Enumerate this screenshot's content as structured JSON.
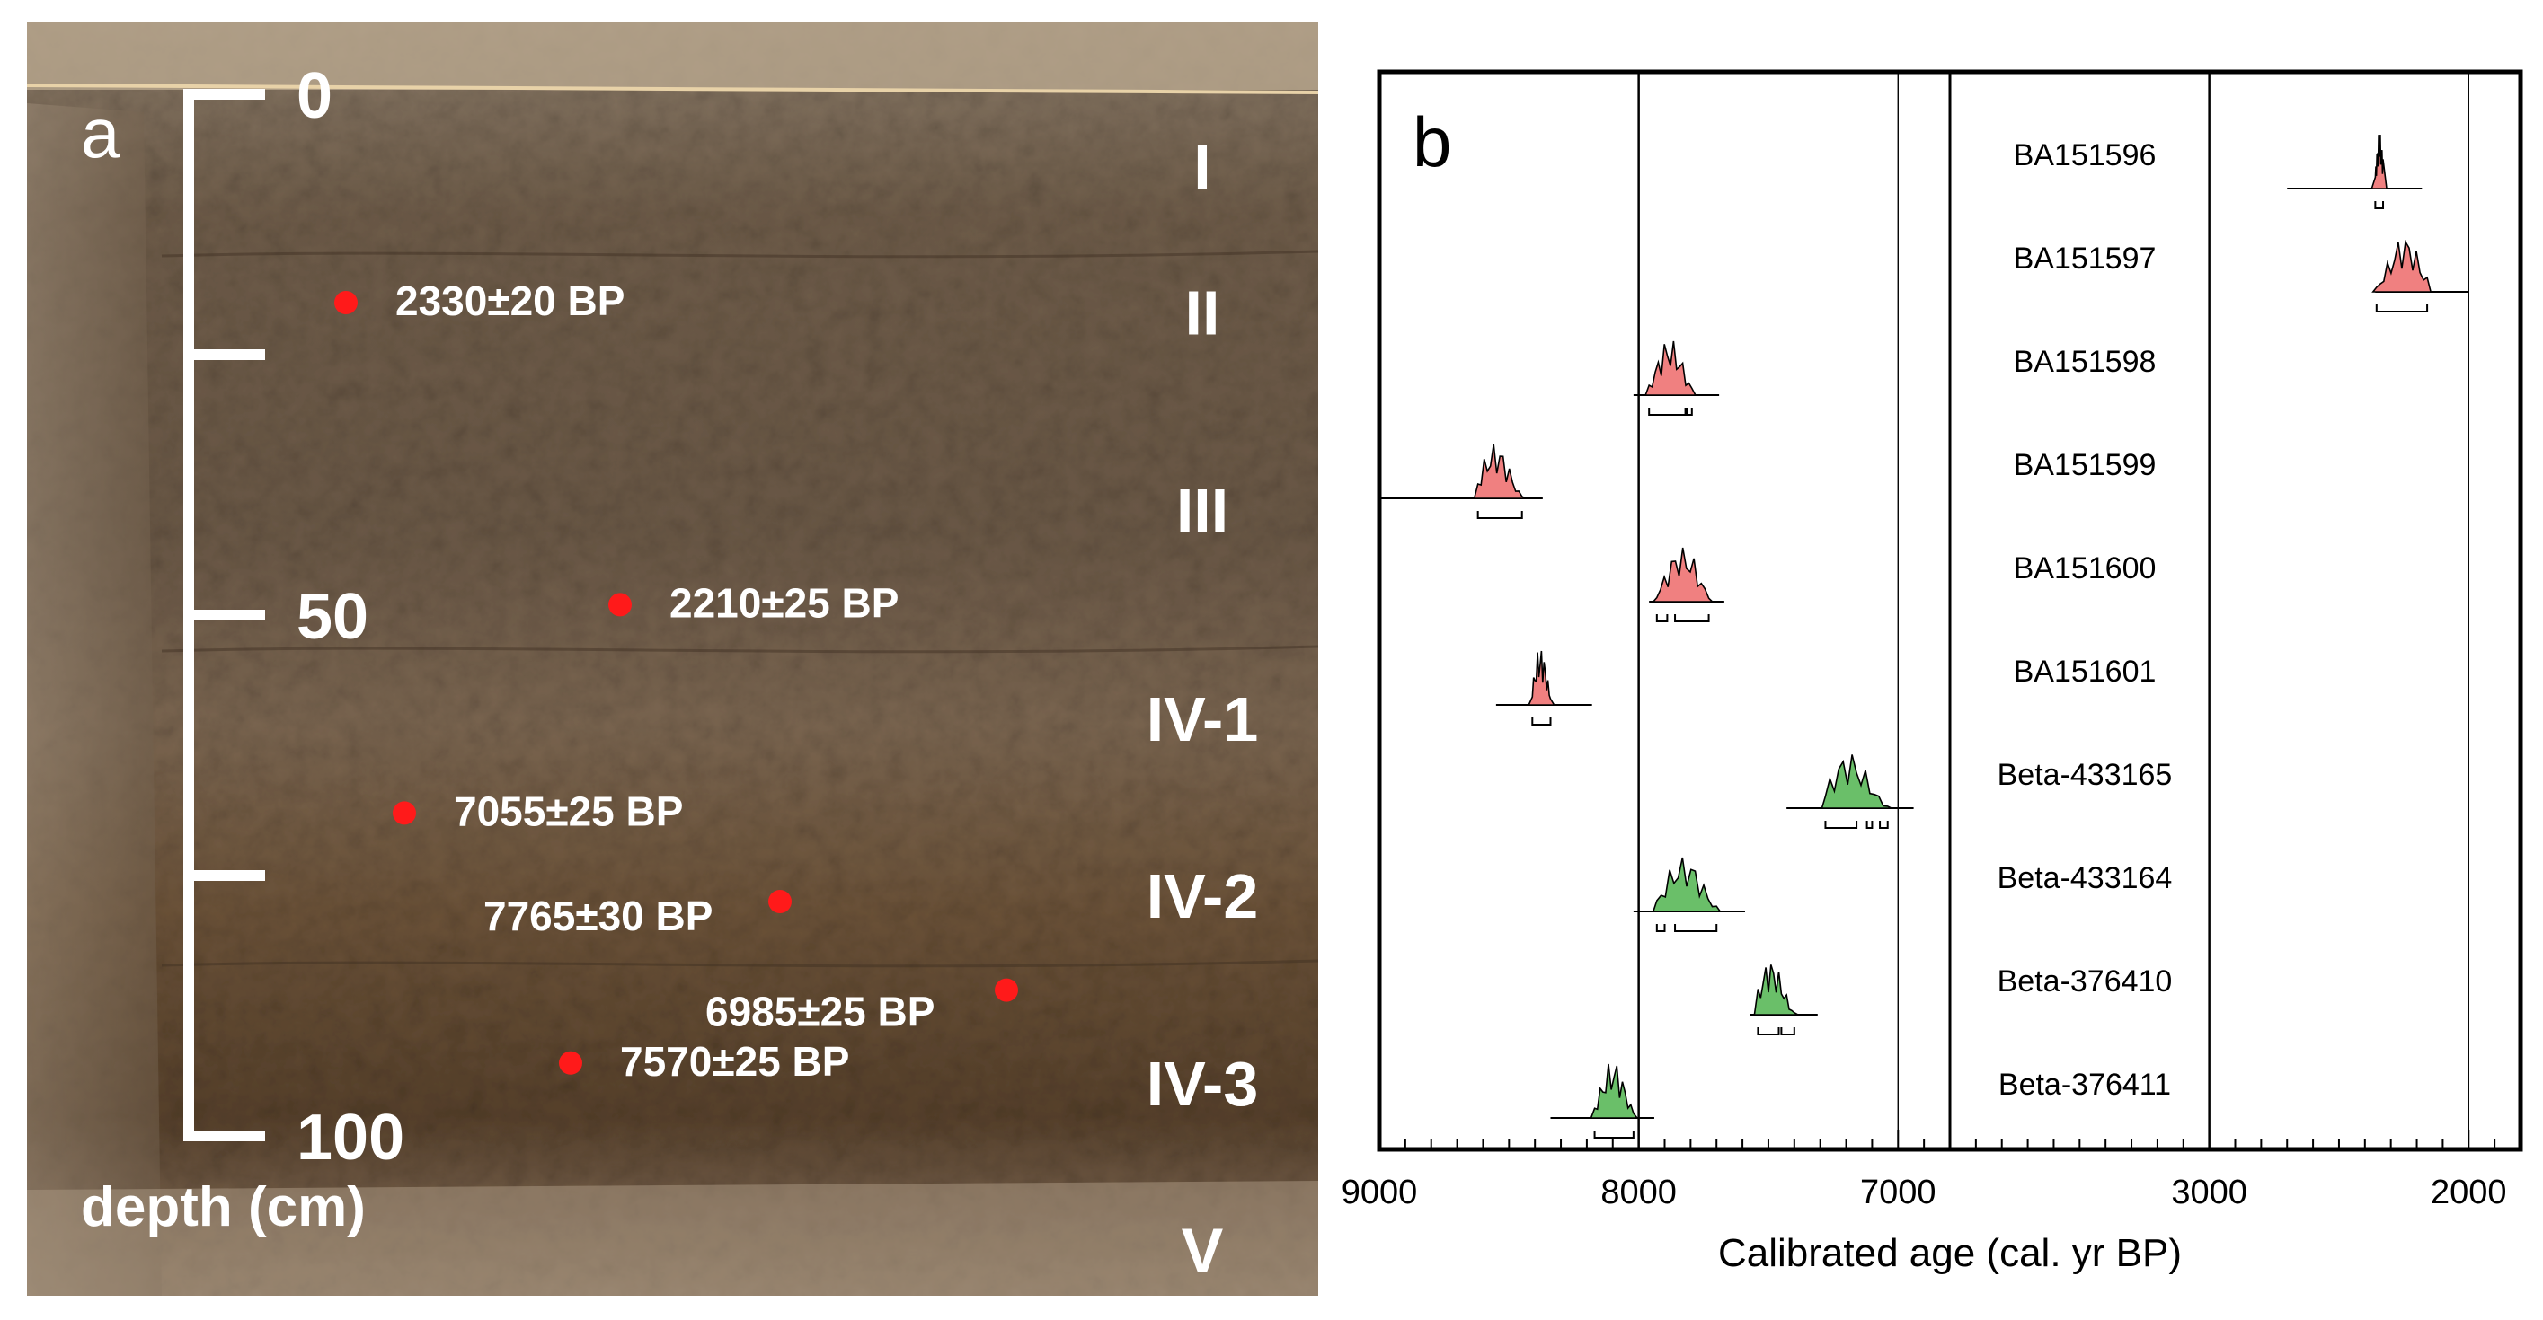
{
  "panel_a": {
    "letter": "a",
    "depth_axis": {
      "label": "depth (cm)",
      "ticks": [
        {
          "value": 0,
          "text": "0"
        },
        {
          "value": 25,
          "text": ""
        },
        {
          "value": 50,
          "text": "50"
        },
        {
          "value": 75,
          "text": ""
        },
        {
          "value": 100,
          "text": "100"
        }
      ]
    },
    "layers": [
      {
        "label": "I",
        "depth_cm": 7
      },
      {
        "label": "II",
        "depth_cm": 21
      },
      {
        "label": "III",
        "depth_cm": 40
      },
      {
        "label": "IV-1",
        "depth_cm": 60
      },
      {
        "label": "IV-2",
        "depth_cm": 77
      },
      {
        "label": "IV-3",
        "depth_cm": 95
      },
      {
        "label": "V",
        "depth_cm": 111
      }
    ],
    "samples": [
      {
        "label": "2330±20 BP",
        "depth_cm": 20
      },
      {
        "label": "2210±25 BP",
        "depth_cm": 49
      },
      {
        "label": "7055±25 BP",
        "depth_cm": 69
      },
      {
        "label": "7765±30 BP",
        "depth_cm": 77.5
      },
      {
        "label": "6985±25 BP",
        "depth_cm": 86
      },
      {
        "label": "7570±25 BP",
        "depth_cm": 93
      }
    ]
  },
  "panel_b": {
    "letter": "b",
    "chart_data": {
      "type": "area",
      "xlabel": "Calibrated age (cal. yr BP)",
      "x_axis_segments": [
        {
          "range": [
            9000,
            6800
          ],
          "ticks": [
            9000,
            8000,
            7000
          ],
          "tick_labels": [
            "9000",
            "8000",
            "7000"
          ]
        },
        {
          "range": [
            4000,
            1800
          ],
          "ticks": [
            3000,
            2000
          ],
          "tick_labels": [
            "3000",
            "2000"
          ]
        }
      ],
      "colors": {
        "red": "#f08080",
        "green": "#6abf69"
      },
      "samples": [
        {
          "name": "BA151596",
          "color": "red",
          "segment": 2,
          "peak_cal_bp": 2340,
          "range_cal_bp": [
            2700,
            2180
          ],
          "brackets_cal_bp": [
            [
              2360,
              2330
            ]
          ]
        },
        {
          "name": "BA151597",
          "color": "red",
          "segment": 2,
          "peak_cal_bp": 2240,
          "range_cal_bp": [
            2360,
            2000
          ],
          "brackets_cal_bp": [
            [
              2355,
              2160
            ]
          ]
        },
        {
          "name": "BA151598",
          "color": "red",
          "segment": 1,
          "peak_cal_bp": 7880,
          "range_cal_bp": [
            8020,
            7690
          ],
          "brackets_cal_bp": [
            [
              7960,
              7820
            ],
            [
              7815,
              7795
            ]
          ]
        },
        {
          "name": "BA151599",
          "color": "red",
          "segment": 1,
          "peak_cal_bp": 8560,
          "range_cal_bp": [
            9000,
            8370
          ],
          "brackets_cal_bp": [
            [
              8620,
              8450
            ]
          ]
        },
        {
          "name": "BA151600",
          "color": "red",
          "segment": 1,
          "peak_cal_bp": 7830,
          "range_cal_bp": [
            7960,
            7670
          ],
          "brackets_cal_bp": [
            [
              7930,
              7890
            ],
            [
              7860,
              7730
            ]
          ]
        },
        {
          "name": "BA151601",
          "color": "red",
          "segment": 1,
          "peak_cal_bp": 8380,
          "range_cal_bp": [
            8550,
            8180
          ],
          "brackets_cal_bp": [
            [
              8410,
              8340
            ]
          ]
        },
        {
          "name": "Beta-433165",
          "color": "green",
          "segment": 1,
          "peak_cal_bp": 7200,
          "range_cal_bp": [
            7430,
            6940
          ],
          "brackets_cal_bp": [
            [
              7280,
              7160
            ],
            [
              7120,
              7100
            ],
            [
              7070,
              7040
            ]
          ]
        },
        {
          "name": "Beta-433164",
          "color": "green",
          "segment": 1,
          "peak_cal_bp": 7830,
          "range_cal_bp": [
            8020,
            7590
          ],
          "brackets_cal_bp": [
            [
              7930,
              7900
            ],
            [
              7860,
              7700
            ]
          ]
        },
        {
          "name": "Beta-376410",
          "color": "green",
          "segment": 1,
          "peak_cal_bp": 7500,
          "range_cal_bp": [
            7570,
            7310
          ],
          "brackets_cal_bp": [
            [
              7540,
              7460
            ],
            [
              7450,
              7400
            ]
          ]
        },
        {
          "name": "Beta-376411",
          "color": "green",
          "segment": 1,
          "peak_cal_bp": 8100,
          "range_cal_bp": [
            8340,
            7940
          ],
          "brackets_cal_bp": [
            [
              8170,
              8020
            ]
          ]
        }
      ]
    }
  }
}
